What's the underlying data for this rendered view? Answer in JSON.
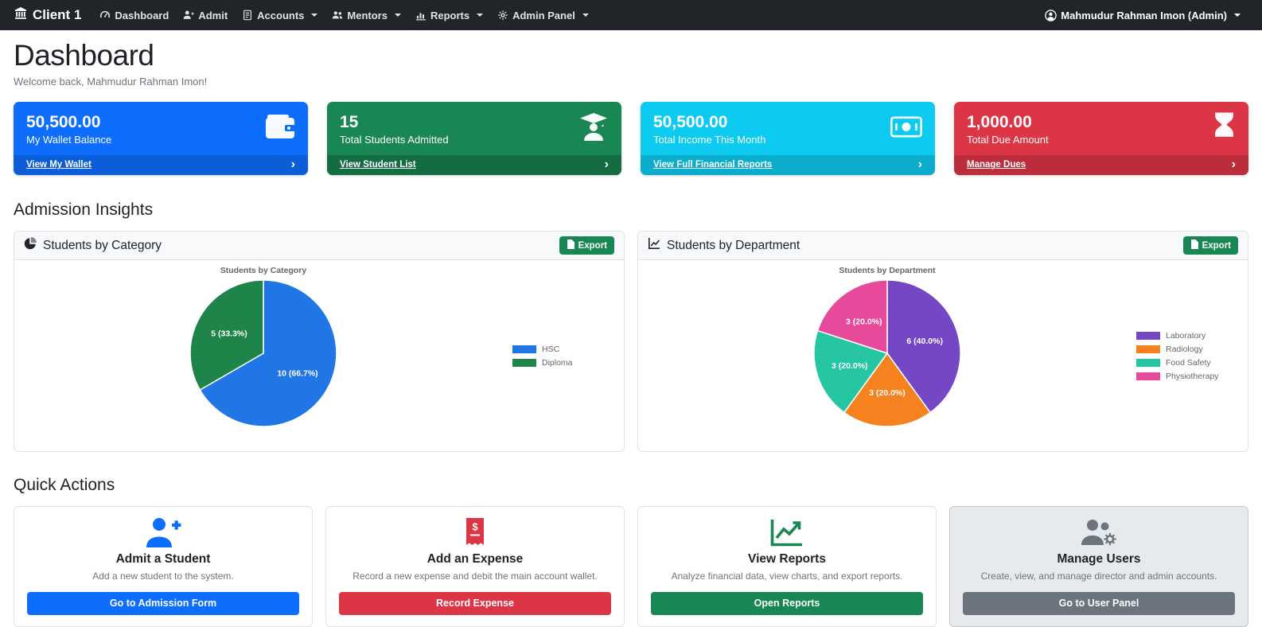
{
  "colors": {
    "navbar_bg": "#212529",
    "export_green": "#198754",
    "card_header_bg": "#f8f9fa",
    "border": "#dee2e6",
    "muted_text": "#6c757d"
  },
  "icons": {
    "chevron_right": "›"
  },
  "navbar": {
    "brand": "Client 1",
    "brand_icon": "bank-icon",
    "items": [
      {
        "label": "Dashboard",
        "icon": "speedometer-icon",
        "dropdown": false
      },
      {
        "label": "Admit",
        "icon": "person-plus-icon",
        "dropdown": false
      },
      {
        "label": "Accounts",
        "icon": "journal-icon",
        "dropdown": true
      },
      {
        "label": "Mentors",
        "icon": "people-icon",
        "dropdown": true
      },
      {
        "label": "Reports",
        "icon": "graph-icon",
        "dropdown": true
      },
      {
        "label": "Admin Panel",
        "icon": "gears-icon",
        "dropdown": true
      }
    ],
    "user": {
      "label": "Mahmudur Rahman Imon (Admin)",
      "icon": "person-circle-icon",
      "dropdown": true
    }
  },
  "header": {
    "title": "Dashboard",
    "subtitle": "Welcome back, Mahmudur Rahman Imon!"
  },
  "stat_cards": [
    {
      "value": "50,500.00",
      "label": "My Wallet Balance",
      "link": "View My Wallet",
      "icon": "wallet-icon",
      "color": "#0d6efd",
      "footer_color": "#0b5ed7"
    },
    {
      "value": "15",
      "label": "Total Students Admitted",
      "link": "View Student List",
      "icon": "mortarboard-icon",
      "color": "#198754",
      "footer_color": "#146c43"
    },
    {
      "value": "50,500.00",
      "label": "Total Income This Month",
      "link": "View Full Financial Reports",
      "icon": "cash-icon",
      "color": "#0dcaf0",
      "footer_color": "#0baccc"
    },
    {
      "value": "1,000.00",
      "label": "Total Due Amount",
      "link": "Manage Dues",
      "icon": "hourglass-icon",
      "color": "#dc3545",
      "footer_color": "#bb2d3b"
    }
  ],
  "sections": {
    "insights": "Admission Insights",
    "quick_actions": "Quick Actions"
  },
  "chart_cards": [
    {
      "header": "Students by Category",
      "icon": "pie-chart-icon",
      "export_label": "Export"
    },
    {
      "header": "Students by Department",
      "icon": "line-chart-icon",
      "export_label": "Export"
    }
  ],
  "chart_data": [
    {
      "type": "pie",
      "title": "Students by Category",
      "labels": [
        "HSC",
        "Diploma"
      ],
      "values": [
        10,
        5
      ],
      "percents": [
        "66.7%",
        "33.3%"
      ],
      "data_labels": [
        "10 (66.7%)",
        "5 (33.3%)"
      ],
      "colors": [
        "#2176e6",
        "#1e8449"
      ],
      "legend_position": "right"
    },
    {
      "type": "pie",
      "title": "Students by Department",
      "labels": [
        "Laboratory",
        "Radiology",
        "Food Safety",
        "Physiotherapy"
      ],
      "values": [
        6,
        3,
        3,
        3
      ],
      "percents": [
        "40.0%",
        "20.0%",
        "20.0%",
        "20.0%"
      ],
      "data_labels": [
        "6 (40.0%)",
        "3 (20.0%)",
        "3 (20.0%)",
        "3 (20.0%)"
      ],
      "colors": [
        "#7448c5",
        "#f5821f",
        "#26c6a2",
        "#e84a9b"
      ],
      "legend_position": "right"
    }
  ],
  "quick_actions": [
    {
      "title": "Admit a Student",
      "description": "Add a new student to the system.",
      "button": "Go to Admission Form",
      "icon": "person-plus-icon",
      "color": "#0d6efd",
      "muted": false
    },
    {
      "title": "Add an Expense",
      "description": "Record a new expense and debit the main account wallet.",
      "button": "Record Expense",
      "icon": "receipt-icon",
      "color": "#dc3545",
      "muted": false
    },
    {
      "title": "View Reports",
      "description": "Analyze financial data, view charts, and export reports.",
      "button": "Open Reports",
      "icon": "graph-up-icon",
      "color": "#198754",
      "muted": false
    },
    {
      "title": "Manage Users",
      "description": "Create, view, and manage director and admin accounts.",
      "button": "Go to User Panel",
      "icon": "people-gear-icon",
      "color": "#6c757d",
      "muted": true
    }
  ]
}
